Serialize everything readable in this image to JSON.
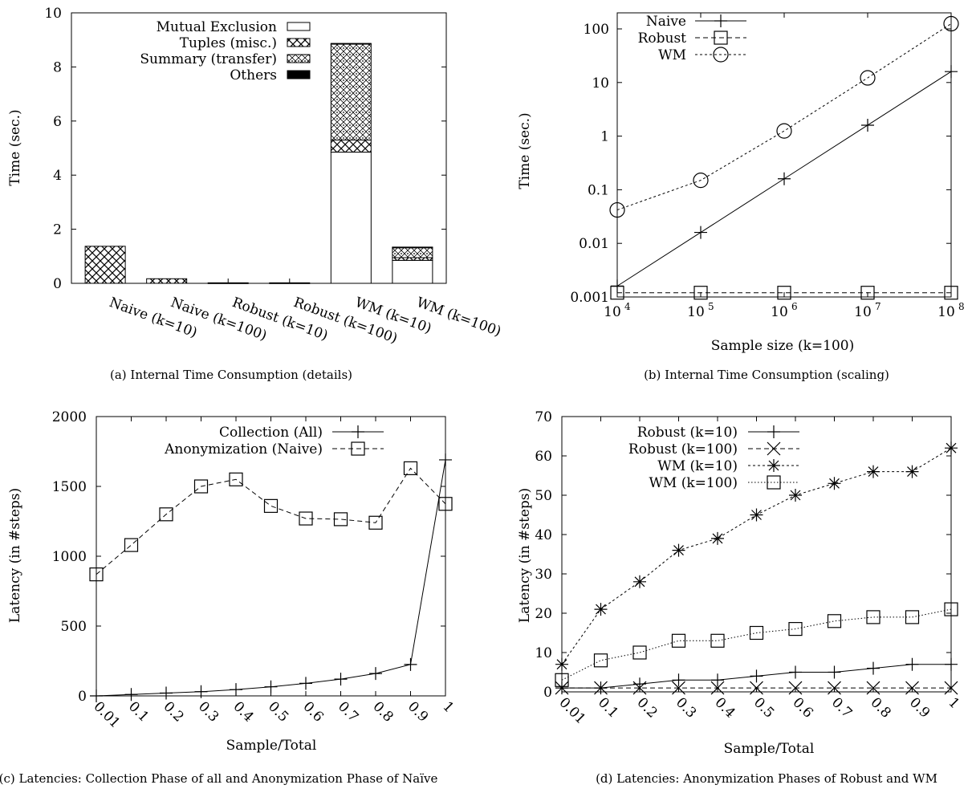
{
  "chart_data": [
    {
      "id": "a",
      "type": "bar",
      "stacked": true,
      "caption": "(a) Internal Time Consumption (details)",
      "ylabel": "Time (sec.)",
      "xlabel": "",
      "ylim": [
        0,
        10
      ],
      "yticks": [
        "0",
        "2",
        "4",
        "6",
        "8",
        "10"
      ],
      "categories": [
        "Naive (k=10)",
        "Naive (k=100)",
        "Robust (k=10)",
        "Robust (k=100)",
        "WM (k=10)",
        "WM (k=100)"
      ],
      "legend_position": "top-right",
      "series": [
        {
          "name": "Mutual Exclusion",
          "pattern": "white",
          "values": [
            0.0,
            0.0,
            0.0,
            0.0,
            4.85,
            0.85
          ]
        },
        {
          "name": "Tuples (misc.)",
          "pattern": "crosshatch",
          "values": [
            1.37,
            0.17,
            0.02,
            0.02,
            0.45,
            0.1
          ]
        },
        {
          "name": "Summary (transfer)",
          "pattern": "diamond-dots",
          "values": [
            0.0,
            0.0,
            0.0,
            0.0,
            3.55,
            0.38
          ]
        },
        {
          "name": "Others",
          "pattern": "black",
          "values": [
            0.0,
            0.0,
            0.0,
            0.0,
            0.02,
            0.01
          ]
        }
      ]
    },
    {
      "id": "b",
      "type": "line",
      "caption": "(b) Internal Time Consumption (scaling)",
      "xlabel": "Sample size (k=100)",
      "ylabel": "Time (sec.)",
      "xscale": "log",
      "yscale": "log",
      "xlim": [
        10000,
        100000000
      ],
      "ylim": [
        0.001,
        100
      ],
      "xticks": [
        {
          "base": "10",
          "exp": "4"
        },
        {
          "base": "10",
          "exp": "5"
        },
        {
          "base": "10",
          "exp": "6"
        },
        {
          "base": "10",
          "exp": "7"
        },
        {
          "base": "10",
          "exp": "8"
        }
      ],
      "yticks": [
        "0.001",
        "0.01",
        "0.1",
        "1",
        "10",
        "100"
      ],
      "legend_position": "top-left",
      "x": [
        10000,
        100000,
        1000000,
        10000000,
        100000000
      ],
      "series": [
        {
          "name": "Naive",
          "marker": "plus",
          "dash": "solid",
          "values": [
            0.0016,
            0.016,
            0.16,
            1.6,
            16
          ]
        },
        {
          "name": "Robust",
          "marker": "square",
          "dash": "dashed",
          "values": [
            0.0012,
            0.0012,
            0.0012,
            0.0012,
            0.0012
          ]
        },
        {
          "name": "WM",
          "marker": "circle",
          "dash": "dotted",
          "values": [
            0.042,
            0.15,
            1.25,
            12.2,
            125
          ]
        }
      ]
    },
    {
      "id": "c",
      "type": "line",
      "caption": "(c) Latencies: Collection Phase of all and Anonymization Phase of Naïve",
      "xlabel": "Sample/Total",
      "ylabel": "Latency (in #steps)",
      "ylim": [
        0,
        2000
      ],
      "yticks": [
        "0",
        "500",
        "1000",
        "1500",
        "2000"
      ],
      "categories": [
        "0.01",
        "0.1",
        "0.2",
        "0.3",
        "0.4",
        "0.5",
        "0.6",
        "0.7",
        "0.8",
        "0.9",
        "1"
      ],
      "legend_position": "top-right",
      "series": [
        {
          "name": "Collection (All)",
          "marker": "plus",
          "dash": "solid",
          "values": [
            0,
            10,
            20,
            30,
            45,
            65,
            90,
            120,
            160,
            225,
            1690
          ]
        },
        {
          "name": "Anonymization (Naive)",
          "marker": "square",
          "dash": "dashed",
          "values": [
            870,
            1080,
            1300,
            1500,
            1550,
            1360,
            1270,
            1265,
            1240,
            1630,
            1375
          ]
        }
      ]
    },
    {
      "id": "d",
      "type": "line",
      "caption": "(d) Latencies: Anonymization Phases of Robust and WM",
      "xlabel": "Sample/Total",
      "ylabel": "Latency (in #steps)",
      "ylim": [
        0,
        70
      ],
      "yticks": [
        "0",
        "10",
        "20",
        "30",
        "40",
        "50",
        "60",
        "70"
      ],
      "categories": [
        "0.01",
        "0.1",
        "0.2",
        "0.3",
        "0.4",
        "0.5",
        "0.6",
        "0.7",
        "0.8",
        "0.9",
        "1"
      ],
      "legend_position": "top-left",
      "series": [
        {
          "name": "Robust (k=10)",
          "marker": "plus",
          "dash": "solid",
          "values": [
            1,
            1,
            2,
            3,
            3,
            4,
            5,
            5,
            6,
            7,
            7
          ]
        },
        {
          "name": "Robust (k=100)",
          "marker": "x",
          "dash": "dashed",
          "values": [
            1,
            1,
            1,
            1,
            1,
            1,
            1,
            1,
            1,
            1,
            1
          ]
        },
        {
          "name": "WM (k=10)",
          "marker": "star",
          "dash": "dotted",
          "values": [
            7,
            21,
            28,
            36,
            39,
            45,
            50,
            53,
            56,
            56,
            62
          ]
        },
        {
          "name": "WM (k=100)",
          "marker": "square",
          "dash": "finedotted",
          "values": [
            3,
            8,
            10,
            13,
            13,
            15,
            16,
            18,
            19,
            19,
            21
          ]
        }
      ]
    }
  ]
}
